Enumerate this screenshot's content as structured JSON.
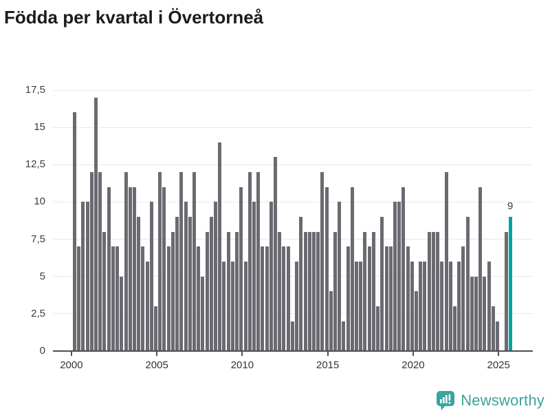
{
  "title": "Födda per kvartal i Övertorneå",
  "chart_data": {
    "type": "bar",
    "title": "Födda per kvartal i Övertorneå",
    "xlabel": "",
    "ylabel": "",
    "x_tick_labels": [
      "2000",
      "2005",
      "2010",
      "2015",
      "2020",
      "2025"
    ],
    "y_tick_labels": [
      "0",
      "2,5",
      "5",
      "7,5",
      "10",
      "12,5",
      "15",
      "17,5"
    ],
    "y_tick_values": [
      0,
      2.5,
      5,
      7.5,
      10,
      12.5,
      15,
      17.5
    ],
    "ylim": [
      0,
      18.5
    ],
    "grid": "horizontal",
    "bar_color": "#6a6a71",
    "values": [
      16,
      7,
      10,
      10,
      12,
      17,
      12,
      8,
      11,
      7,
      7,
      5,
      12,
      11,
      11,
      9,
      7,
      6,
      10,
      3,
      12,
      11,
      7,
      8,
      9,
      12,
      10,
      9,
      12,
      7,
      5,
      8,
      9,
      10,
      14,
      6,
      8,
      6,
      8,
      11,
      6,
      12,
      10,
      12,
      7,
      7,
      10,
      13,
      8,
      7,
      7,
      2,
      6,
      9,
      8,
      8,
      8,
      8,
      12,
      11,
      4,
      8,
      10,
      2,
      7,
      11,
      6,
      6,
      8,
      7,
      8,
      3,
      9,
      7,
      7,
      10,
      10,
      11,
      7,
      6,
      4,
      6,
      6,
      8,
      8,
      8,
      6,
      12,
      6,
      3,
      6,
      7,
      9,
      5,
      5,
      11,
      5,
      6,
      3,
      2,
      0,
      8,
      9
    ],
    "highlight": {
      "index": 102,
      "value": 9,
      "label": "9",
      "color": "#00a49c"
    }
  },
  "logo": {
    "text": "Newsworthy",
    "color": "#3ba49e",
    "icon": "newsworthy-badge-icon"
  }
}
